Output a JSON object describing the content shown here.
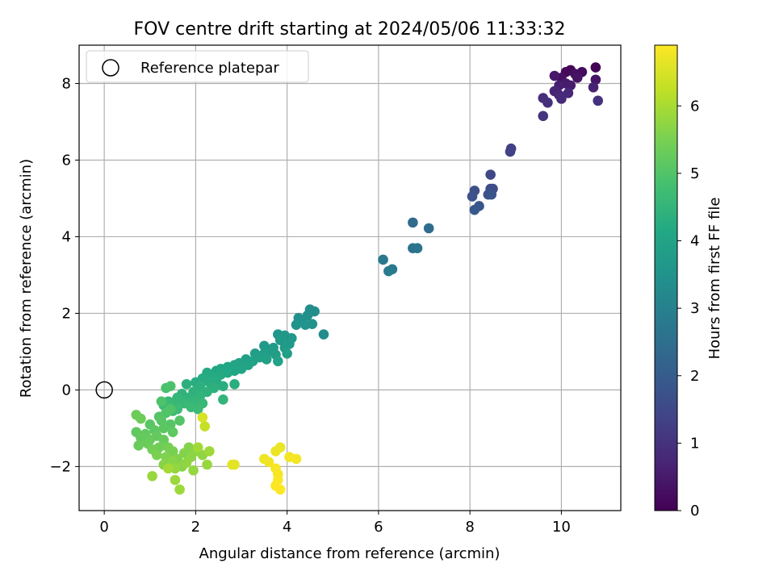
{
  "chart_data": {
    "type": "scatter",
    "title": "FOV centre drift starting at 2024/05/06 11:33:32",
    "xlabel": "Angular distance from reference (arcmin)",
    "ylabel": "Rotation from reference (arcmin)",
    "xlim": [
      -0.55,
      11.3
    ],
    "ylim": [
      -3.15,
      9.0
    ],
    "xticks": [
      0,
      2,
      4,
      6,
      8,
      10
    ],
    "yticks": [
      -2,
      0,
      2,
      4,
      6,
      8
    ],
    "xtick_labels": [
      "0",
      "2",
      "4",
      "6",
      "8",
      "10"
    ],
    "ytick_labels": [
      "−2",
      "0",
      "2",
      "4",
      "6",
      "8"
    ],
    "grid": true,
    "legend": {
      "position": "top-left",
      "entries": [
        {
          "label": "Reference platepar",
          "marker": "open-circle",
          "color": "#000000"
        }
      ]
    },
    "reference_point": {
      "x": 0,
      "y": 0
    },
    "colorbar": {
      "label": "Hours from first FF file",
      "colormap": "viridis",
      "range": [
        0,
        6.9
      ],
      "ticks": [
        0,
        1,
        2,
        3,
        4,
        5,
        6
      ],
      "tick_labels": [
        "0",
        "1",
        "2",
        "3",
        "4",
        "5",
        "6"
      ]
    },
    "series": [
      {
        "points": [
          {
            "x": 10.75,
            "y": 8.42,
            "c": 0.05
          },
          {
            "x": 10.2,
            "y": 8.35,
            "c": 0.1
          },
          {
            "x": 10.1,
            "y": 8.3,
            "c": 0.15
          },
          {
            "x": 10.45,
            "y": 8.3,
            "c": 0.2
          },
          {
            "x": 10.0,
            "y": 8.15,
            "c": 0.25
          },
          {
            "x": 10.3,
            "y": 8.25,
            "c": 0.3
          },
          {
            "x": 10.35,
            "y": 8.15,
            "c": 0.35
          },
          {
            "x": 10.75,
            "y": 8.1,
            "c": 0.4
          },
          {
            "x": 9.85,
            "y": 8.2,
            "c": 0.45
          },
          {
            "x": 10.1,
            "y": 8.0,
            "c": 0.5
          },
          {
            "x": 10.2,
            "y": 7.95,
            "c": 0.55
          },
          {
            "x": 9.95,
            "y": 7.95,
            "c": 0.6
          },
          {
            "x": 10.7,
            "y": 7.9,
            "c": 0.65
          },
          {
            "x": 9.85,
            "y": 7.8,
            "c": 0.7
          },
          {
            "x": 10.15,
            "y": 7.75,
            "c": 0.75
          },
          {
            "x": 9.95,
            "y": 7.7,
            "c": 0.8
          },
          {
            "x": 10.0,
            "y": 7.6,
            "c": 0.85
          },
          {
            "x": 9.6,
            "y": 7.62,
            "c": 0.9
          },
          {
            "x": 9.7,
            "y": 7.5,
            "c": 0.95
          },
          {
            "x": 10.8,
            "y": 7.55,
            "c": 1.0
          },
          {
            "x": 9.6,
            "y": 7.15,
            "c": 1.05
          },
          {
            "x": 8.9,
            "y": 6.3,
            "c": 1.3
          },
          {
            "x": 8.88,
            "y": 6.22,
            "c": 1.35
          },
          {
            "x": 8.45,
            "y": 5.62,
            "c": 1.5
          },
          {
            "x": 8.45,
            "y": 5.25,
            "c": 1.55
          },
          {
            "x": 8.5,
            "y": 5.25,
            "c": 1.6
          },
          {
            "x": 8.1,
            "y": 5.2,
            "c": 1.65
          },
          {
            "x": 8.4,
            "y": 5.1,
            "c": 1.7
          },
          {
            "x": 8.05,
            "y": 5.05,
            "c": 1.75
          },
          {
            "x": 8.47,
            "y": 5.1,
            "c": 1.8
          },
          {
            "x": 8.2,
            "y": 4.8,
            "c": 1.85
          },
          {
            "x": 8.1,
            "y": 4.7,
            "c": 1.9
          },
          {
            "x": 6.75,
            "y": 4.37,
            "c": 2.4
          },
          {
            "x": 7.1,
            "y": 4.22,
            "c": 2.45
          },
          {
            "x": 6.75,
            "y": 3.7,
            "c": 2.6
          },
          {
            "x": 6.85,
            "y": 3.7,
            "c": 2.65
          },
          {
            "x": 6.1,
            "y": 3.4,
            "c": 2.75
          },
          {
            "x": 6.3,
            "y": 3.15,
            "c": 2.8
          },
          {
            "x": 6.22,
            "y": 3.1,
            "c": 2.85
          },
          {
            "x": 4.5,
            "y": 2.1,
            "c": 3.35
          },
          {
            "x": 4.6,
            "y": 2.05,
            "c": 3.38
          },
          {
            "x": 4.45,
            "y": 1.95,
            "c": 3.4
          },
          {
            "x": 4.25,
            "y": 1.88,
            "c": 3.45
          },
          {
            "x": 4.35,
            "y": 1.8,
            "c": 3.48
          },
          {
            "x": 4.55,
            "y": 1.72,
            "c": 3.5
          },
          {
            "x": 4.2,
            "y": 1.7,
            "c": 3.52
          },
          {
            "x": 4.4,
            "y": 1.7,
            "c": 3.55
          },
          {
            "x": 4.8,
            "y": 1.45,
            "c": 3.3
          },
          {
            "x": 3.8,
            "y": 1.45,
            "c": 3.6
          },
          {
            "x": 3.95,
            "y": 1.42,
            "c": 3.62
          },
          {
            "x": 4.1,
            "y": 1.35,
            "c": 3.65
          },
          {
            "x": 3.85,
            "y": 1.3,
            "c": 3.68
          },
          {
            "x": 4.05,
            "y": 1.2,
            "c": 3.7
          },
          {
            "x": 3.5,
            "y": 1.15,
            "c": 3.72
          },
          {
            "x": 3.7,
            "y": 1.1,
            "c": 3.74
          },
          {
            "x": 3.95,
            "y": 1.1,
            "c": 3.76
          },
          {
            "x": 3.6,
            "y": 1.0,
            "c": 3.78
          },
          {
            "x": 3.3,
            "y": 0.95,
            "c": 3.8
          },
          {
            "x": 3.5,
            "y": 0.95,
            "c": 3.82
          },
          {
            "x": 3.75,
            "y": 0.92,
            "c": 3.84
          },
          {
            "x": 4.0,
            "y": 0.95,
            "c": 3.86
          },
          {
            "x": 3.4,
            "y": 0.85,
            "c": 3.88
          },
          {
            "x": 3.1,
            "y": 0.8,
            "c": 3.9
          },
          {
            "x": 3.25,
            "y": 0.75,
            "c": 3.92
          },
          {
            "x": 3.55,
            "y": 0.8,
            "c": 3.94
          },
          {
            "x": 3.8,
            "y": 0.75,
            "c": 3.96
          },
          {
            "x": 2.95,
            "y": 0.7,
            "c": 3.98
          },
          {
            "x": 3.15,
            "y": 0.65,
            "c": 4.0
          },
          {
            "x": 2.85,
            "y": 0.65,
            "c": 4.02
          },
          {
            "x": 2.7,
            "y": 0.6,
            "c": 4.04
          },
          {
            "x": 3.0,
            "y": 0.55,
            "c": 4.06
          },
          {
            "x": 2.85,
            "y": 0.5,
            "c": 4.08
          },
          {
            "x": 2.55,
            "y": 0.55,
            "c": 4.1
          },
          {
            "x": 2.45,
            "y": 0.5,
            "c": 4.12
          },
          {
            "x": 2.7,
            "y": 0.45,
            "c": 4.14
          },
          {
            "x": 2.25,
            "y": 0.45,
            "c": 4.16
          },
          {
            "x": 2.55,
            "y": 0.4,
            "c": 4.18
          },
          {
            "x": 2.35,
            "y": 0.35,
            "c": 4.2
          },
          {
            "x": 2.15,
            "y": 0.3,
            "c": 4.22
          },
          {
            "x": 2.45,
            "y": 0.25,
            "c": 4.24
          },
          {
            "x": 2.0,
            "y": 0.2,
            "c": 4.26
          },
          {
            "x": 2.3,
            "y": 0.2,
            "c": 4.28
          },
          {
            "x": 2.85,
            "y": 0.15,
            "c": 4.3
          },
          {
            "x": 2.6,
            "y": 0.1,
            "c": 4.32
          },
          {
            "x": 1.8,
            "y": 0.15,
            "c": 4.34
          },
          {
            "x": 2.1,
            "y": 0.1,
            "c": 4.36
          },
          {
            "x": 2.4,
            "y": 0.05,
            "c": 4.38
          },
          {
            "x": 2.25,
            "y": -0.05,
            "c": 4.4
          },
          {
            "x": 1.95,
            "y": -0.05,
            "c": 4.42
          },
          {
            "x": 1.7,
            "y": -0.1,
            "c": 4.44
          },
          {
            "x": 2.1,
            "y": -0.15,
            "c": 4.46
          },
          {
            "x": 1.85,
            "y": -0.2,
            "c": 4.48
          },
          {
            "x": 2.6,
            "y": -0.25,
            "c": 4.5
          },
          {
            "x": 1.6,
            "y": -0.2,
            "c": 4.52
          },
          {
            "x": 2.0,
            "y": -0.3,
            "c": 4.54
          },
          {
            "x": 1.55,
            "y": -0.3,
            "c": 4.56
          },
          {
            "x": 1.75,
            "y": -0.35,
            "c": 4.58
          },
          {
            "x": 2.15,
            "y": -0.35,
            "c": 4.6
          },
          {
            "x": 1.4,
            "y": -0.3,
            "c": 4.62
          },
          {
            "x": 1.9,
            "y": -0.45,
            "c": 4.64
          },
          {
            "x": 2.05,
            "y": -0.5,
            "c": 4.66
          },
          {
            "x": 1.6,
            "y": -0.5,
            "c": 4.68
          },
          {
            "x": 1.3,
            "y": -0.4,
            "c": 4.7
          },
          {
            "x": 1.5,
            "y": -0.55,
            "c": 4.72
          },
          {
            "x": 1.35,
            "y": 0.05,
            "c": 4.9
          },
          {
            "x": 1.45,
            "y": 0.1,
            "c": 4.92
          },
          {
            "x": 1.25,
            "y": -0.3,
            "c": 4.95
          },
          {
            "x": 1.45,
            "y": -0.5,
            "c": 4.98
          },
          {
            "x": 1.35,
            "y": -0.6,
            "c": 5.0
          },
          {
            "x": 1.2,
            "y": -0.7,
            "c": 5.02
          },
          {
            "x": 1.65,
            "y": -0.8,
            "c": 5.04
          },
          {
            "x": 1.45,
            "y": -0.9,
            "c": 5.06
          },
          {
            "x": 1.25,
            "y": -0.8,
            "c": 5.08
          },
          {
            "x": 1.0,
            "y": -0.9,
            "c": 5.1
          },
          {
            "x": 1.3,
            "y": -1.0,
            "c": 5.12
          },
          {
            "x": 1.1,
            "y": -1.05,
            "c": 5.14
          },
          {
            "x": 1.5,
            "y": -1.1,
            "c": 5.16
          },
          {
            "x": 0.7,
            "y": -1.1,
            "c": 5.18
          },
          {
            "x": 0.9,
            "y": -1.15,
            "c": 5.2
          },
          {
            "x": 1.15,
            "y": -1.2,
            "c": 5.22
          },
          {
            "x": 0.8,
            "y": -1.25,
            "c": 5.24
          },
          {
            "x": 1.0,
            "y": -1.3,
            "c": 5.26
          },
          {
            "x": 1.3,
            "y": -1.3,
            "c": 5.28
          },
          {
            "x": 0.75,
            "y": -1.45,
            "c": 5.3
          },
          {
            "x": 0.95,
            "y": -1.4,
            "c": 5.32
          },
          {
            "x": 0.7,
            "y": -0.65,
            "c": 5.34
          },
          {
            "x": 0.8,
            "y": -0.75,
            "c": 5.36
          },
          {
            "x": 1.2,
            "y": -1.5,
            "c": 5.38
          },
          {
            "x": 1.05,
            "y": -1.55,
            "c": 5.4
          },
          {
            "x": 1.4,
            "y": -1.5,
            "c": 5.45
          },
          {
            "x": 1.5,
            "y": -1.6,
            "c": 5.5
          },
          {
            "x": 1.15,
            "y": -1.7,
            "c": 5.52
          },
          {
            "x": 1.35,
            "y": -1.75,
            "c": 5.55
          },
          {
            "x": 1.6,
            "y": -1.8,
            "c": 5.58
          },
          {
            "x": 1.75,
            "y": -1.65,
            "c": 5.6
          },
          {
            "x": 1.85,
            "y": -1.5,
            "c": 5.62
          },
          {
            "x": 1.3,
            "y": -1.95,
            "c": 5.64
          },
          {
            "x": 1.5,
            "y": -1.85,
            "c": 5.66
          },
          {
            "x": 1.7,
            "y": -2.0,
            "c": 5.68
          },
          {
            "x": 1.9,
            "y": -1.75,
            "c": 5.7
          },
          {
            "x": 2.0,
            "y": -1.6,
            "c": 5.72
          },
          {
            "x": 2.15,
            "y": -1.7,
            "c": 5.74
          },
          {
            "x": 1.8,
            "y": -1.9,
            "c": 5.76
          },
          {
            "x": 1.55,
            "y": -2.05,
            "c": 5.78
          },
          {
            "x": 1.95,
            "y": -2.1,
            "c": 5.8
          },
          {
            "x": 2.25,
            "y": -1.95,
            "c": 5.82
          },
          {
            "x": 1.05,
            "y": -2.25,
            "c": 5.84
          },
          {
            "x": 1.55,
            "y": -2.35,
            "c": 5.86
          },
          {
            "x": 1.65,
            "y": -2.6,
            "c": 5.88
          },
          {
            "x": 2.3,
            "y": -1.6,
            "c": 5.9
          },
          {
            "x": 2.05,
            "y": -1.5,
            "c": 5.92
          },
          {
            "x": 1.4,
            "y": -2.05,
            "c": 5.94
          },
          {
            "x": 2.2,
            "y": -0.95,
            "c": 6.3
          },
          {
            "x": 2.15,
            "y": -0.72,
            "c": 6.5
          },
          {
            "x": 2.8,
            "y": -1.95,
            "c": 6.6
          },
          {
            "x": 2.85,
            "y": -1.95,
            "c": 6.62
          },
          {
            "x": 3.85,
            "y": -1.5,
            "c": 6.7
          },
          {
            "x": 3.75,
            "y": -1.6,
            "c": 6.72
          },
          {
            "x": 3.5,
            "y": -1.8,
            "c": 6.74
          },
          {
            "x": 3.6,
            "y": -1.88,
            "c": 6.76
          },
          {
            "x": 4.05,
            "y": -1.75,
            "c": 6.78
          },
          {
            "x": 4.2,
            "y": -1.8,
            "c": 6.8
          },
          {
            "x": 3.75,
            "y": -2.05,
            "c": 6.82
          },
          {
            "x": 3.8,
            "y": -2.2,
            "c": 6.84
          },
          {
            "x": 3.8,
            "y": -2.35,
            "c": 6.86
          },
          {
            "x": 3.75,
            "y": -2.5,
            "c": 6.88
          },
          {
            "x": 3.85,
            "y": -2.6,
            "c": 6.9
          }
        ]
      }
    ]
  }
}
